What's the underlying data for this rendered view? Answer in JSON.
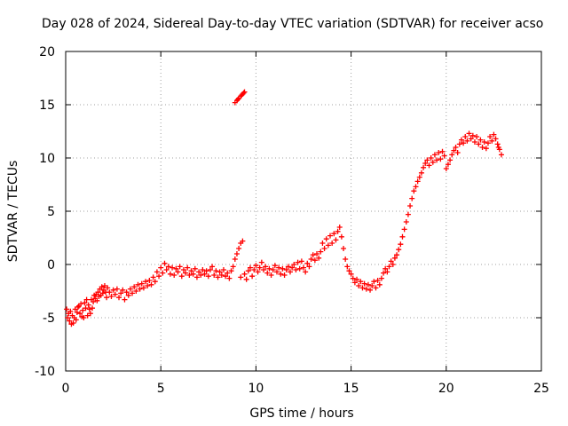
{
  "chart_data": {
    "type": "scatter",
    "title": "Day 028 of 2024, Sidereal Day-to-day VTEC variation (SDTVAR) for receiver acso",
    "xlabel": "GPS time / hours",
    "ylabel": "SDTVAR / TECUs",
    "xlim": [
      0,
      25
    ],
    "ylim": [
      -10,
      20
    ],
    "xticks": [
      0,
      5,
      10,
      15,
      20,
      25
    ],
    "yticks": [
      -10,
      -5,
      0,
      5,
      10,
      15,
      20
    ],
    "xtick_labels": [
      "0",
      "5",
      "10",
      "15",
      "20",
      "25"
    ],
    "ytick_labels": [
      "-10",
      "-5",
      "0",
      "5",
      "10",
      "15",
      "20"
    ],
    "grid": true,
    "marker": "+",
    "series": [
      {
        "name": "SDTVAR",
        "color": "#ff0000",
        "points": [
          [
            0.05,
            -4.2
          ],
          [
            0.1,
            -5.0
          ],
          [
            0.15,
            -4.6
          ],
          [
            0.2,
            -5.3
          ],
          [
            0.25,
            -4.4
          ],
          [
            0.3,
            -5.6
          ],
          [
            0.35,
            -4.8
          ],
          [
            0.4,
            -5.5
          ],
          [
            0.45,
            -5.0
          ],
          [
            0.5,
            -4.2
          ],
          [
            0.55,
            -5.2
          ],
          [
            0.6,
            -4.5
          ],
          [
            0.65,
            -4.0
          ],
          [
            0.7,
            -3.9
          ],
          [
            0.75,
            -4.6
          ],
          [
            0.8,
            -3.7
          ],
          [
            0.85,
            -4.9
          ],
          [
            0.9,
            -4.3
          ],
          [
            0.95,
            -5.0
          ],
          [
            1.0,
            -3.6
          ],
          [
            1.05,
            -4.1
          ],
          [
            1.1,
            -3.3
          ],
          [
            1.15,
            -4.8
          ],
          [
            1.2,
            -3.8
          ],
          [
            1.25,
            -4.2
          ],
          [
            1.3,
            -4.6
          ],
          [
            1.35,
            -3.3
          ],
          [
            1.4,
            -4.1
          ],
          [
            1.45,
            -3.5
          ],
          [
            1.5,
            -2.9
          ],
          [
            1.55,
            -3.2
          ],
          [
            1.6,
            -2.8
          ],
          [
            1.65,
            -3.4
          ],
          [
            1.7,
            -2.6
          ],
          [
            1.75,
            -3.0
          ],
          [
            1.8,
            -2.3
          ],
          [
            1.85,
            -2.9
          ],
          [
            1.9,
            -2.1
          ],
          [
            1.95,
            -2.7
          ],
          [
            2.0,
            -2.4
          ],
          [
            2.05,
            -2.0
          ],
          [
            2.1,
            -2.6
          ],
          [
            2.15,
            -3.1
          ],
          [
            2.2,
            -2.2
          ],
          [
            2.3,
            -2.6
          ],
          [
            2.4,
            -3.0
          ],
          [
            2.5,
            -2.4
          ],
          [
            2.6,
            -2.8
          ],
          [
            2.7,
            -2.3
          ],
          [
            2.8,
            -3.1
          ],
          [
            2.9,
            -2.7
          ],
          [
            3.0,
            -2.4
          ],
          [
            3.1,
            -3.3
          ],
          [
            3.2,
            -2.6
          ],
          [
            3.3,
            -2.9
          ],
          [
            3.4,
            -2.3
          ],
          [
            3.5,
            -2.7
          ],
          [
            3.6,
            -2.1
          ],
          [
            3.7,
            -2.5
          ],
          [
            3.8,
            -1.9
          ],
          [
            3.9,
            -2.3
          ],
          [
            4.0,
            -1.8
          ],
          [
            4.1,
            -2.2
          ],
          [
            4.2,
            -1.6
          ],
          [
            4.3,
            -2.0
          ],
          [
            4.4,
            -1.5
          ],
          [
            4.5,
            -1.9
          ],
          [
            4.6,
            -1.2
          ],
          [
            4.7,
            -1.6
          ],
          [
            4.8,
            -0.7
          ],
          [
            4.9,
            -1.1
          ],
          [
            5.0,
            -0.3
          ],
          [
            5.1,
            -0.8
          ],
          [
            5.2,
            0.1
          ],
          [
            5.3,
            -0.5
          ],
          [
            5.4,
            -0.2
          ],
          [
            5.5,
            -0.9
          ],
          [
            5.6,
            -0.3
          ],
          [
            5.7,
            -1.0
          ],
          [
            5.8,
            -0.4
          ],
          [
            5.9,
            -0.7
          ],
          [
            6.0,
            -0.2
          ],
          [
            6.1,
            -1.1
          ],
          [
            6.2,
            -0.5
          ],
          [
            6.3,
            -0.8
          ],
          [
            6.4,
            -0.3
          ],
          [
            6.5,
            -1.0
          ],
          [
            6.6,
            -0.6
          ],
          [
            6.7,
            -0.9
          ],
          [
            6.8,
            -0.4
          ],
          [
            6.9,
            -1.2
          ],
          [
            7.0,
            -0.7
          ],
          [
            7.1,
            -1.0
          ],
          [
            7.2,
            -0.5
          ],
          [
            7.3,
            -0.9
          ],
          [
            7.4,
            -0.6
          ],
          [
            7.5,
            -1.1
          ],
          [
            7.6,
            -0.5
          ],
          [
            7.7,
            -0.2
          ],
          [
            7.8,
            -1.0
          ],
          [
            7.9,
            -0.6
          ],
          [
            8.0,
            -1.2
          ],
          [
            8.1,
            -0.7
          ],
          [
            8.2,
            -1.0
          ],
          [
            8.3,
            -0.5
          ],
          [
            8.4,
            -1.1
          ],
          [
            8.5,
            -0.8
          ],
          [
            8.6,
            -1.3
          ],
          [
            8.7,
            -0.6
          ],
          [
            8.8,
            -0.2
          ],
          [
            8.9,
            0.5
          ],
          [
            9.0,
            1.0
          ],
          [
            9.1,
            1.5
          ],
          [
            9.2,
            2.0
          ],
          [
            9.3,
            2.2
          ],
          [
            9.2,
            -1.2
          ],
          [
            9.4,
            -0.9
          ],
          [
            9.5,
            -1.4
          ],
          [
            9.6,
            -0.6
          ],
          [
            9.7,
            -0.3
          ],
          [
            9.8,
            -1.1
          ],
          [
            9.9,
            -0.5
          ],
          [
            10.0,
            -0.1
          ],
          [
            10.1,
            -0.7
          ],
          [
            10.2,
            -0.3
          ],
          [
            10.3,
            0.2
          ],
          [
            10.4,
            -0.5
          ],
          [
            10.5,
            -0.2
          ],
          [
            10.6,
            -0.8
          ],
          [
            10.7,
            -0.4
          ],
          [
            10.8,
            -1.0
          ],
          [
            10.9,
            -0.5
          ],
          [
            11.0,
            -0.1
          ],
          [
            11.1,
            -0.7
          ],
          [
            11.2,
            -0.3
          ],
          [
            11.3,
            -0.9
          ],
          [
            11.4,
            -0.4
          ],
          [
            11.5,
            -1.0
          ],
          [
            11.6,
            -0.5
          ],
          [
            11.7,
            -0.2
          ],
          [
            11.8,
            -0.7
          ],
          [
            11.9,
            -0.3
          ],
          [
            12.0,
            0.0
          ],
          [
            12.1,
            -0.5
          ],
          [
            12.2,
            0.2
          ],
          [
            12.3,
            -0.4
          ],
          [
            12.4,
            0.3
          ],
          [
            12.5,
            -0.3
          ],
          [
            12.6,
            -0.7
          ],
          [
            12.7,
            0.1
          ],
          [
            12.8,
            -0.2
          ],
          [
            12.9,
            0.5
          ],
          [
            13.0,
            0.9
          ],
          [
            13.1,
            0.4
          ],
          [
            13.2,
            1.0
          ],
          [
            13.3,
            0.6
          ],
          [
            13.4,
            1.2
          ],
          [
            13.5,
            2.0
          ],
          [
            13.6,
            1.5
          ],
          [
            13.7,
            2.4
          ],
          [
            13.8,
            1.8
          ],
          [
            13.9,
            2.7
          ],
          [
            14.0,
            2.0
          ],
          [
            14.1,
            2.9
          ],
          [
            14.2,
            2.3
          ],
          [
            14.3,
            3.1
          ],
          [
            14.4,
            3.5
          ],
          [
            14.5,
            2.6
          ],
          [
            14.6,
            1.5
          ],
          [
            14.7,
            0.5
          ],
          [
            14.8,
            -0.2
          ],
          [
            14.9,
            -0.6
          ],
          [
            15.0,
            -0.9
          ],
          [
            15.1,
            -1.3
          ],
          [
            15.2,
            -1.7
          ],
          [
            15.3,
            -1.4
          ],
          [
            15.4,
            -2.0
          ],
          [
            15.5,
            -1.6
          ],
          [
            15.6,
            -2.2
          ],
          [
            15.7,
            -1.8
          ],
          [
            15.8,
            -2.3
          ],
          [
            15.9,
            -1.9
          ],
          [
            16.0,
            -2.4
          ],
          [
            16.1,
            -2.0
          ],
          [
            16.2,
            -1.6
          ],
          [
            16.3,
            -2.2
          ],
          [
            16.4,
            -1.5
          ],
          [
            16.5,
            -1.9
          ],
          [
            16.6,
            -1.3
          ],
          [
            16.7,
            -0.8
          ],
          [
            16.8,
            -0.4
          ],
          [
            16.9,
            -0.7
          ],
          [
            17.0,
            -0.2
          ],
          [
            17.1,
            0.3
          ],
          [
            17.2,
            0.0
          ],
          [
            17.3,
            0.6
          ],
          [
            17.4,
            0.9
          ],
          [
            17.5,
            1.4
          ],
          [
            17.6,
            1.9
          ],
          [
            17.7,
            2.6
          ],
          [
            17.8,
            3.3
          ],
          [
            17.9,
            4.0
          ],
          [
            18.0,
            4.7
          ],
          [
            18.1,
            5.5
          ],
          [
            18.2,
            6.2
          ],
          [
            18.3,
            6.9
          ],
          [
            18.4,
            7.3
          ],
          [
            18.5,
            7.8
          ],
          [
            18.6,
            8.2
          ],
          [
            18.7,
            8.6
          ],
          [
            18.8,
            9.1
          ],
          [
            18.9,
            9.5
          ],
          [
            19.0,
            9.8
          ],
          [
            19.1,
            9.3
          ],
          [
            19.2,
            10.0
          ],
          [
            19.3,
            9.6
          ],
          [
            19.4,
            10.3
          ],
          [
            19.5,
            9.8
          ],
          [
            19.6,
            10.5
          ],
          [
            19.7,
            9.9
          ],
          [
            19.8,
            10.6
          ],
          [
            19.9,
            10.2
          ],
          [
            20.0,
            9.0
          ],
          [
            20.1,
            9.4
          ],
          [
            20.2,
            9.8
          ],
          [
            20.3,
            10.3
          ],
          [
            20.4,
            10.7
          ],
          [
            20.5,
            11.0
          ],
          [
            20.6,
            10.5
          ],
          [
            20.7,
            11.3
          ],
          [
            20.8,
            11.7
          ],
          [
            20.9,
            11.4
          ],
          [
            21.0,
            12.0
          ],
          [
            21.1,
            11.6
          ],
          [
            21.2,
            12.3
          ],
          [
            21.3,
            11.8
          ],
          [
            21.4,
            12.1
          ],
          [
            21.5,
            11.5
          ],
          [
            21.6,
            12.0
          ],
          [
            21.7,
            11.3
          ],
          [
            21.8,
            11.7
          ],
          [
            21.9,
            11.0
          ],
          [
            22.0,
            11.5
          ],
          [
            22.1,
            10.9
          ],
          [
            22.2,
            11.4
          ],
          [
            22.3,
            12.0
          ],
          [
            22.4,
            11.6
          ],
          [
            22.5,
            12.2
          ],
          [
            22.6,
            11.8
          ],
          [
            22.7,
            11.3
          ],
          [
            22.8,
            10.8
          ],
          [
            22.9,
            10.3
          ],
          [
            22.75,
            11.0
          ],
          [
            8.9,
            15.2
          ],
          [
            9.0,
            15.4
          ],
          [
            9.1,
            15.6
          ],
          [
            9.2,
            15.8
          ],
          [
            9.3,
            16.0
          ],
          [
            9.4,
            16.2
          ],
          [
            9.35,
            16.1
          ],
          [
            9.05,
            15.5
          ],
          [
            9.25,
            15.9
          ]
        ]
      }
    ]
  }
}
